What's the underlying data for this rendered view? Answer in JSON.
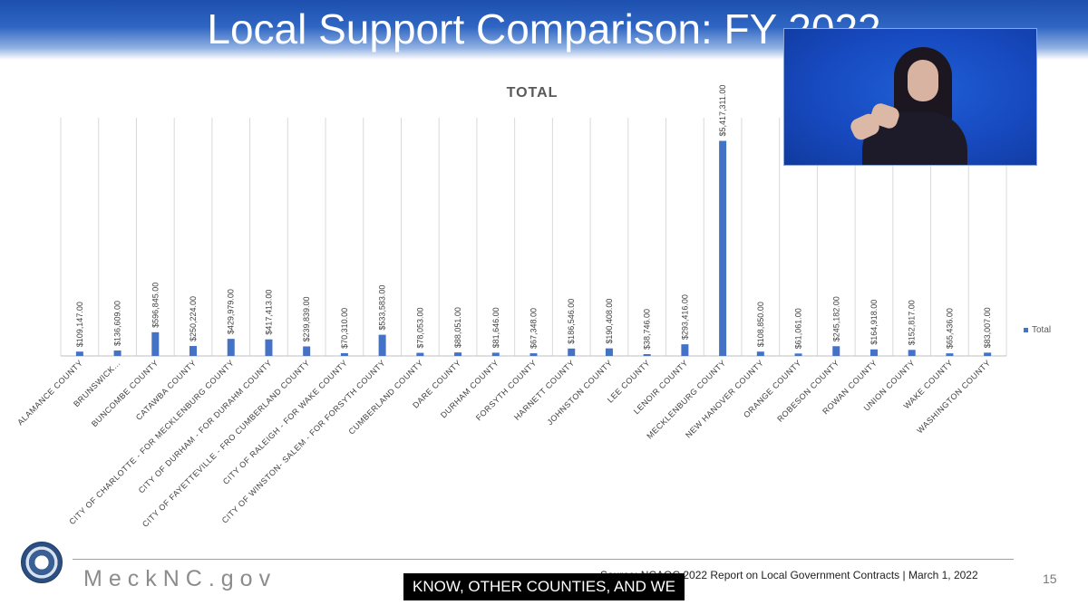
{
  "slide": {
    "title": "Local Support Comparison: FY 2022",
    "page_number": "15",
    "source": "Source: NCAOC 2022 Report on Local Government Contracts | March 1, 2022",
    "brand": "MeckNC.gov"
  },
  "caption": {
    "text": "KNOW, OTHER COUNTIES, AND WE"
  },
  "video": {
    "icon": "interpreter-video"
  },
  "chart_data": {
    "type": "bar",
    "title": "TOTAL",
    "legend": [
      "Total"
    ],
    "legend_position": "right",
    "categories": [
      "ALAMANCE COUNTY",
      "BRUNSWICK…",
      "BUNCOMBE COUNTY",
      "CATAWBA COUNTY",
      "CITY OF CHARLOTTE - FOR MECKLENBURG COUNTY",
      "CITY OF DURHAM - FOR DURAHM COUNTY",
      "CITY OF FAYETTEVILLE - FRO CUMBERLAND COUNTY",
      "CITY OF RALEIGH - FOR WAKE COUNTY",
      "CITY OF WINSTON- SALEM - FOR FORSYTH COUNTY",
      "CUMBERLAND COUNTY",
      "DARE COUNTY",
      "DURHAM COUNTY",
      "FORSYTH COUNTY",
      "HARNETT COUNTY",
      "JOHNSTON COUNTY",
      "LEE COUNTY",
      "LENOIR COUNTY",
      "MECKLENBURG COUNTY",
      "NEW HANOVER COUNTY",
      "ORANGE COUNTY",
      "ROBESON COUNTY",
      "ROWAN COUNTY",
      "UNION COUNTY",
      "WAKE COUNTY",
      "WASHINGTON COUNTY"
    ],
    "values": [
      109147,
      136609,
      596845,
      250224,
      429979,
      417413,
      239839,
      70310,
      533583,
      78053,
      88051,
      81646,
      67348,
      186546,
      190408,
      38746,
      293416,
      5417311,
      108850,
      61061,
      245182,
      164918,
      152817,
      65436,
      83007
    ],
    "value_labels": [
      "$109,147.00",
      "$136,609.00",
      "$596,845.00",
      "$250,224.00",
      "$429,979.00",
      "$417,413.00",
      "$239,839.00",
      "$70,310.00",
      "$533,583.00",
      "$78,053.00",
      "$88,051.00",
      "$81,646.00",
      "$67,348.00",
      "$186,546.00",
      "$190,408.00",
      "$38,746.00",
      "$293,416.00",
      "$5,417,311.00",
      "$108,850.00",
      "$61,061.00",
      "$245,182.00",
      "$164,918.00",
      "$152,817.00",
      "$65,436.00",
      "$83,007.00"
    ],
    "ylim": [
      0,
      6000000
    ],
    "grid": "vertical",
    "bar_color": "#4472c4"
  }
}
